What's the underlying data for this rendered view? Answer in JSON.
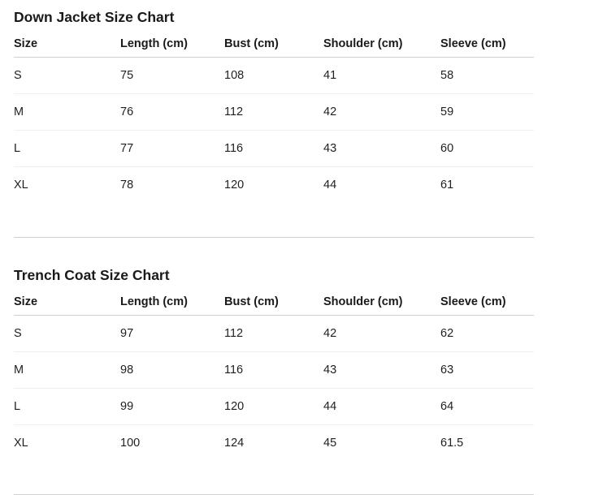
{
  "page": {
    "background_color": "#ffffff",
    "text_color": "#1b1b1b",
    "divider_color_strong": "#d0d0d0",
    "divider_color_light": "#f0f0f0"
  },
  "sections": [
    {
      "title": "Down Jacket Size Chart",
      "columns": [
        "Size",
        "Length (cm)",
        "Bust (cm)",
        "Shoulder (cm)",
        "Sleeve (cm)"
      ],
      "rows": [
        [
          "S",
          "75",
          "108",
          "41",
          "58"
        ],
        [
          "M",
          "76",
          "112",
          "42",
          "59"
        ],
        [
          "L",
          "77",
          "116",
          "43",
          "60"
        ],
        [
          "XL",
          "78",
          "120",
          "44",
          "61"
        ]
      ]
    },
    {
      "title": "Trench Coat Size Chart",
      "columns": [
        "Size",
        "Length (cm)",
        "Bust (cm)",
        "Shoulder (cm)",
        "Sleeve (cm)"
      ],
      "rows": [
        [
          "S",
          "97",
          "112",
          "42",
          "62"
        ],
        [
          "M",
          "98",
          "116",
          "43",
          "63"
        ],
        [
          "L",
          "99",
          "120",
          "44",
          "64"
        ],
        [
          "XL",
          "100",
          "124",
          "45",
          "61.5"
        ]
      ]
    }
  ]
}
